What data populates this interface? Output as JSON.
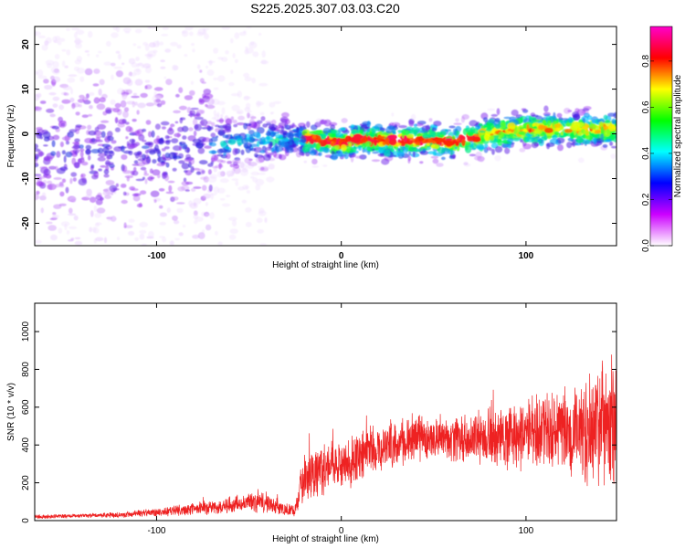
{
  "figure_title": "S225.2025.307.03.03.C20",
  "chart_data": [
    {
      "type": "heatmap",
      "title": "S225.2025.307.03.03.C20",
      "xlabel": "Height of straight line (km)",
      "ylabel": "Frequency (Hz)",
      "xlim": [
        -166,
        149
      ],
      "ylim": [
        -25,
        24
      ],
      "x_ticks": [
        -100,
        0,
        100
      ],
      "y_ticks": [
        -20,
        -10,
        0,
        10,
        20
      ],
      "grid": false,
      "colorbar": {
        "label": "Normalized spectral amplitude",
        "range": [
          0.0,
          0.95
        ],
        "ticks": [
          0.0,
          0.2,
          0.4,
          0.6,
          0.8
        ],
        "tick_labels": [
          "0.0",
          "0.2",
          "0.4",
          "0.6",
          "0.8"
        ],
        "colors": [
          "#ff00cc",
          "#ff0000",
          "#ffff00",
          "#00ff00",
          "#00ffff",
          "#0000ff",
          "#cc00ff",
          "#ffffff"
        ]
      },
      "ridge_line": {
        "x": [
          -166,
          -140,
          -120,
          -100,
          -80,
          -60,
          -40,
          -20,
          0,
          10,
          20,
          30,
          40,
          50,
          60,
          70,
          80,
          100,
          120,
          149
        ],
        "y": [
          -3,
          -3.5,
          -4,
          -4,
          -3,
          -2,
          -1.5,
          -1,
          -2,
          -1,
          -1.5,
          -1.5,
          -1.5,
          -1.5,
          -2,
          -1,
          0,
          1,
          1,
          1
        ]
      }
    },
    {
      "type": "line",
      "xlabel": "Height of straight line (km)",
      "ylabel": "SNR (10 * v/v)",
      "xlim": [
        -166,
        149
      ],
      "ylim": [
        0,
        1150
      ],
      "x_ticks": [
        -100,
        0,
        100
      ],
      "y_ticks": [
        0,
        200,
        400,
        600,
        800,
        1000
      ],
      "grid": false,
      "series": [
        {
          "name": "SNR",
          "color": "#ee2222",
          "envelope": {
            "x": [
              -166,
              -140,
              -120,
              -100,
              -80,
              -60,
              -45,
              -25,
              -20,
              0,
              20,
              40,
              60,
              80,
              100,
              120,
              140,
              149
            ],
            "mean": [
              20,
              25,
              30,
              45,
              60,
              80,
              100,
              50,
              240,
              300,
              380,
              440,
              430,
              440,
              460,
              470,
              480,
              500
            ],
            "spread": [
              15,
              15,
              20,
              30,
              45,
              60,
              80,
              40,
              180,
              180,
              170,
              170,
              160,
              200,
              250,
              330,
              420,
              480
            ]
          }
        }
      ]
    }
  ]
}
